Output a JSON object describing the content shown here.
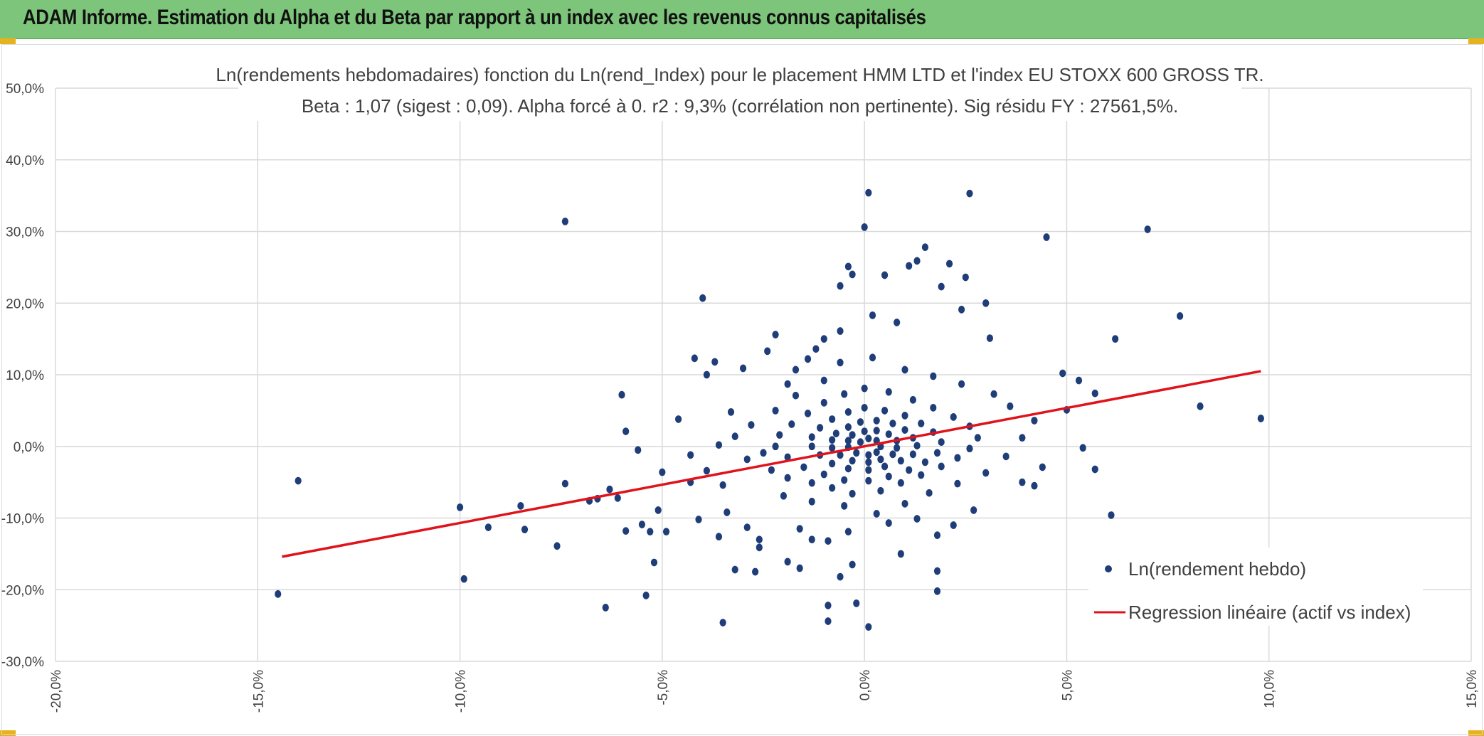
{
  "header": {
    "title": "ADAM Informe. Estimation du Alpha et du Beta par rapport à un index avec les revenus connus capitalisés"
  },
  "colors": {
    "banner": "#7dc57a",
    "points": "#1f3d78",
    "regression": "#e0121b",
    "grid": "#d9d9d9",
    "text": "#404040"
  },
  "chart_data": {
    "type": "scatter",
    "title": "Ln(rendements hebdomadaires) fonction du Ln(rend_Index) pour le placement HMM LTD et l'index EU STOXX 600 GROSS TR.",
    "subtitle": "Beta : 1,07 (sigest : 0,09). Alpha forcé à 0. r2 : 9,3% (corrélation non pertinente). Sig résidu FY : 27561,5%.",
    "xlim": [
      -20,
      15
    ],
    "ylim": [
      -30,
      50
    ],
    "x_ticks": [
      "-20,0%",
      "-15,0%",
      "-10,0%",
      "-5,0%",
      "0,0%",
      "5,0%",
      "10,0%",
      "15,0%"
    ],
    "y_ticks": [
      "50,0%",
      "40,0%",
      "30,0%",
      "20,0%",
      "10,0%",
      "0,0%",
      "-10,0%",
      "-20,0%",
      "-30,0%"
    ],
    "grid": true,
    "legend_position": "bottom-right",
    "series": [
      {
        "name": "Ln(rendement hebdo)",
        "type": "scatter",
        "points": [
          [
            -14.5,
            -20.6
          ],
          [
            -14.0,
            -4.8
          ],
          [
            -10.0,
            -8.5
          ],
          [
            -9.9,
            -18.5
          ],
          [
            -9.3,
            -11.3
          ],
          [
            -8.5,
            -8.3
          ],
          [
            -8.4,
            -11.6
          ],
          [
            -7.6,
            -13.9
          ],
          [
            -7.4,
            31.4
          ],
          [
            -7.4,
            -5.2
          ],
          [
            -6.8,
            -7.6
          ],
          [
            -6.6,
            -7.3
          ],
          [
            -6.4,
            -22.5
          ],
          [
            -6.3,
            -6.0
          ],
          [
            -6.1,
            -7.2
          ],
          [
            -6.0,
            7.2
          ],
          [
            -5.9,
            2.1
          ],
          [
            -5.9,
            -11.8
          ],
          [
            -5.6,
            -0.5
          ],
          [
            -5.5,
            -10.9
          ],
          [
            -5.4,
            -20.8
          ],
          [
            -5.3,
            -11.9
          ],
          [
            -5.2,
            -16.2
          ],
          [
            -5.1,
            -8.9
          ],
          [
            -5.0,
            -3.6
          ],
          [
            -4.9,
            -11.9
          ],
          [
            -4.6,
            3.8
          ],
          [
            -4.3,
            -1.2
          ],
          [
            -4.2,
            12.3
          ],
          [
            -4.1,
            -10.2
          ],
          [
            -4.0,
            20.7
          ],
          [
            -3.9,
            10.0
          ],
          [
            -3.7,
            11.8
          ],
          [
            -3.5,
            -24.6
          ],
          [
            -3.6,
            -12.6
          ],
          [
            -3.3,
            4.8
          ],
          [
            -3.2,
            -17.2
          ],
          [
            -3.0,
            10.9
          ],
          [
            -2.7,
            -17.5
          ],
          [
            -2.6,
            -13.0
          ],
          [
            -2.4,
            13.3
          ],
          [
            -2.2,
            15.6
          ],
          [
            -2.5,
            -0.9
          ],
          [
            -1.9,
            8.7
          ],
          [
            -1.7,
            10.7
          ],
          [
            -1.4,
            12.2
          ],
          [
            -1.2,
            13.6
          ],
          [
            -1.0,
            15.0
          ],
          [
            -0.6,
            16.1
          ],
          [
            -0.6,
            22.4
          ],
          [
            -0.4,
            25.1
          ],
          [
            -0.3,
            24.0
          ],
          [
            0.1,
            35.4
          ],
          [
            0.0,
            30.6
          ],
          [
            0.2,
            18.3
          ],
          [
            0.5,
            23.9
          ],
          [
            0.8,
            17.3
          ],
          [
            1.1,
            25.2
          ],
          [
            1.3,
            25.9
          ],
          [
            1.5,
            27.8
          ],
          [
            1.9,
            22.3
          ],
          [
            2.1,
            25.5
          ],
          [
            2.5,
            23.6
          ],
          [
            2.6,
            35.3
          ],
          [
            2.4,
            19.1
          ],
          [
            3.0,
            20.0
          ],
          [
            3.1,
            15.1
          ],
          [
            4.5,
            29.2
          ],
          [
            7.0,
            30.3
          ],
          [
            7.8,
            18.2
          ],
          [
            6.2,
            15.0
          ],
          [
            8.3,
            5.6
          ],
          [
            9.8,
            3.9
          ],
          [
            5.7,
            7.4
          ],
          [
            5.3,
            9.2
          ],
          [
            4.9,
            10.2
          ],
          [
            5.0,
            5.1
          ],
          [
            5.4,
            -0.2
          ],
          [
            5.7,
            -3.2
          ],
          [
            6.1,
            -9.6
          ],
          [
            4.2,
            -5.5
          ],
          [
            3.9,
            -5.0
          ],
          [
            4.4,
            -2.9
          ],
          [
            2.7,
            -8.9
          ],
          [
            1.8,
            -17.4
          ],
          [
            1.8,
            -20.2
          ],
          [
            1.8,
            -12.4
          ],
          [
            -0.9,
            -24.4
          ],
          [
            -0.9,
            -22.2
          ],
          [
            -0.2,
            -21.9
          ],
          [
            0.1,
            -25.2
          ],
          [
            -0.6,
            -18.2
          ],
          [
            -1.6,
            -17.0
          ],
          [
            -1.9,
            -16.1
          ],
          [
            -0.3,
            -16.5
          ],
          [
            -0.9,
            -13.2
          ],
          [
            -1.3,
            -13.0
          ],
          [
            -2.6,
            -14.1
          ],
          [
            0.9,
            -15.0
          ],
          [
            -0.4,
            -11.9
          ],
          [
            0.6,
            -10.7
          ],
          [
            1.3,
            -10.1
          ],
          [
            2.2,
            -11.0
          ],
          [
            -1.6,
            -11.5
          ],
          [
            -2.9,
            -11.3
          ],
          [
            -3.4,
            -9.2
          ],
          [
            -3.5,
            -5.4
          ],
          [
            -4.3,
            -5.0
          ],
          [
            -3.9,
            -3.4
          ],
          [
            -2.0,
            -6.9
          ],
          [
            -1.3,
            -7.7
          ],
          [
            -0.5,
            -8.3
          ],
          [
            0.3,
            -9.4
          ],
          [
            1.0,
            -8.0
          ],
          [
            1.6,
            -6.5
          ],
          [
            2.3,
            -5.2
          ],
          [
            3.0,
            -3.7
          ],
          [
            3.5,
            -1.4
          ],
          [
            3.9,
            1.2
          ],
          [
            4.2,
            3.6
          ],
          [
            3.6,
            5.6
          ],
          [
            3.2,
            7.3
          ],
          [
            2.4,
            8.7
          ],
          [
            1.7,
            9.8
          ],
          [
            1.0,
            10.7
          ],
          [
            0.2,
            12.4
          ],
          [
            -0.6,
            11.7
          ],
          [
            -1.0,
            9.2
          ],
          [
            -1.7,
            7.1
          ],
          [
            -2.2,
            5.0
          ],
          [
            -2.8,
            3.0
          ],
          [
            -3.2,
            1.4
          ],
          [
            -3.6,
            0.2
          ],
          [
            -2.9,
            -1.8
          ],
          [
            -2.3,
            -3.3
          ],
          [
            -1.9,
            -4.4
          ],
          [
            -1.3,
            -5.1
          ],
          [
            -0.8,
            -5.8
          ],
          [
            -0.3,
            -6.6
          ],
          [
            0.4,
            -6.2
          ],
          [
            0.9,
            -5.1
          ],
          [
            1.4,
            -4.0
          ],
          [
            1.9,
            -2.8
          ],
          [
            2.3,
            -1.6
          ],
          [
            2.6,
            -0.3
          ],
          [
            2.8,
            1.2
          ],
          [
            2.6,
            2.8
          ],
          [
            2.2,
            4.1
          ],
          [
            1.7,
            5.4
          ],
          [
            1.2,
            6.5
          ],
          [
            0.6,
            7.6
          ],
          [
            0.0,
            8.1
          ],
          [
            -0.5,
            7.3
          ],
          [
            -1.0,
            6.1
          ],
          [
            -1.4,
            4.6
          ],
          [
            -1.8,
            3.1
          ],
          [
            -2.1,
            1.6
          ],
          [
            -2.2,
            0.0
          ],
          [
            -1.9,
            -1.5
          ],
          [
            -1.5,
            -2.9
          ],
          [
            -1.0,
            -3.9
          ],
          [
            -0.5,
            -4.7
          ],
          [
            0.1,
            -4.8
          ],
          [
            0.6,
            -4.2
          ],
          [
            1.1,
            -3.3
          ],
          [
            1.5,
            -2.2
          ],
          [
            1.8,
            -0.9
          ],
          [
            1.9,
            0.6
          ],
          [
            1.7,
            2.0
          ],
          [
            1.4,
            3.2
          ],
          [
            1.0,
            4.3
          ],
          [
            0.5,
            5.0
          ],
          [
            0.0,
            5.4
          ],
          [
            -0.4,
            4.8
          ],
          [
            -0.8,
            3.8
          ],
          [
            -1.1,
            2.6
          ],
          [
            -1.3,
            1.3
          ],
          [
            -1.3,
            0.0
          ],
          [
            -1.1,
            -1.2
          ],
          [
            -0.8,
            -2.4
          ],
          [
            -0.4,
            -3.1
          ],
          [
            0.1,
            -3.3
          ],
          [
            0.5,
            -2.8
          ],
          [
            0.9,
            -2.0
          ],
          [
            1.2,
            -1.1
          ],
          [
            1.3,
            0.1
          ],
          [
            1.2,
            1.2
          ],
          [
            1.0,
            2.3
          ],
          [
            0.7,
            3.2
          ],
          [
            0.3,
            3.6
          ],
          [
            -0.1,
            3.4
          ],
          [
            -0.4,
            2.7
          ],
          [
            -0.7,
            1.8
          ],
          [
            -0.8,
            0.9
          ],
          [
            -0.8,
            -0.2
          ],
          [
            -0.6,
            -1.2
          ],
          [
            -0.3,
            -2.0
          ],
          [
            0.1,
            -2.2
          ],
          [
            0.4,
            -1.8
          ],
          [
            0.7,
            -1.1
          ],
          [
            0.8,
            -0.2
          ],
          [
            0.8,
            0.8
          ],
          [
            0.6,
            1.7
          ],
          [
            0.3,
            2.2
          ],
          [
            0.0,
            2.1
          ],
          [
            -0.3,
            1.6
          ],
          [
            -0.4,
            0.8
          ],
          [
            -0.4,
            -0.1
          ],
          [
            -0.2,
            -0.9
          ],
          [
            0.1,
            -1.2
          ],
          [
            0.3,
            -0.8
          ],
          [
            0.4,
            0.0
          ],
          [
            0.3,
            0.8
          ],
          [
            0.1,
            1.1
          ],
          [
            -0.1,
            0.6
          ]
        ]
      },
      {
        "name": "Regression linéaire (actif vs index)",
        "type": "line",
        "points": [
          [
            -14.4,
            -15.4
          ],
          [
            9.8,
            10.5
          ]
        ]
      }
    ]
  }
}
